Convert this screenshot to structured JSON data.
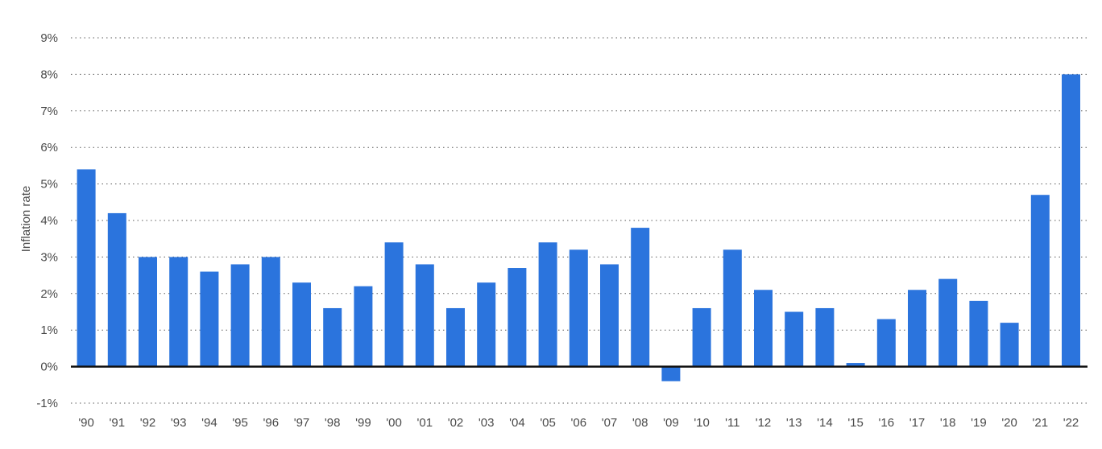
{
  "chart_data": {
    "type": "bar",
    "title": "",
    "xlabel": "",
    "ylabel": "Inflation rate",
    "ylim": [
      -1,
      9
    ],
    "yticks": [
      -1,
      0,
      1,
      2,
      3,
      4,
      5,
      6,
      7,
      8,
      9
    ],
    "ytick_labels": [
      "-1%",
      "0%",
      "1%",
      "2%",
      "3%",
      "4%",
      "5%",
      "6%",
      "7%",
      "8%",
      "9%"
    ],
    "grid": true,
    "legend": "none",
    "categories": [
      "'90",
      "'91",
      "'92",
      "'93",
      "'94",
      "'95",
      "'96",
      "'97",
      "'98",
      "'99",
      "'00",
      "'01",
      "'02",
      "'03",
      "'04",
      "'05",
      "'06",
      "'07",
      "'08",
      "'09",
      "'10",
      "'11",
      "'12",
      "'13",
      "'14",
      "'15",
      "'16",
      "'17",
      "'18",
      "'19",
      "'20",
      "'21",
      "'22"
    ],
    "values": [
      5.4,
      4.2,
      3.0,
      3.0,
      2.6,
      2.8,
      3.0,
      2.3,
      1.6,
      2.2,
      3.4,
      2.8,
      1.6,
      2.3,
      2.7,
      3.4,
      3.2,
      2.8,
      3.8,
      -0.4,
      1.6,
      3.2,
      2.1,
      1.5,
      1.6,
      0.1,
      1.3,
      2.1,
      2.4,
      1.8,
      1.2,
      4.7,
      8.0
    ],
    "bar_color": "#2b74dd"
  }
}
